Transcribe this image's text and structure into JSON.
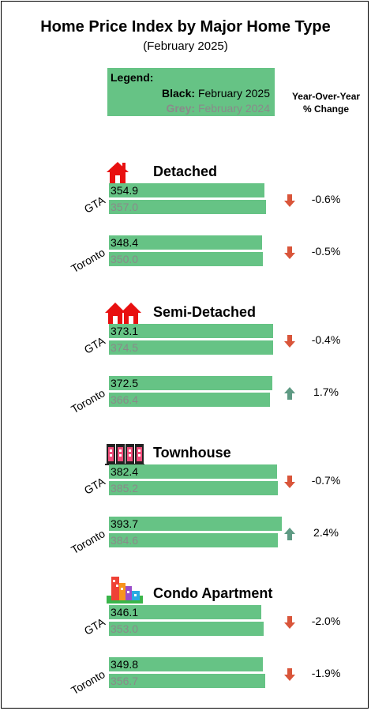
{
  "header": {
    "title": "Home Price Index by Major Home Type",
    "subtitle": "(February 2025)"
  },
  "legend": {
    "title": "Legend:",
    "black_key": "Black:",
    "black_value": "February 2025",
    "grey_key": "Grey:",
    "grey_value": "February 2024"
  },
  "yoy_header": {
    "line1": "Year-Over-Year",
    "line2": "% Change"
  },
  "colors": {
    "bar": "#66c385",
    "down_arrow": "#d9553a",
    "up_arrow": "#5e9a83",
    "grey_text": "#8a8a8a"
  },
  "sections": [
    {
      "title": "Detached",
      "icon": "house-icon",
      "rows": [
        {
          "region": "GTA",
          "current": "354.9",
          "previous": "357.0",
          "change": "-0.6%",
          "direction": "down"
        },
        {
          "region": "Toronto",
          "current": "348.4",
          "previous": "350.0",
          "change": "-0.5%",
          "direction": "down"
        }
      ]
    },
    {
      "title": "Semi-Detached",
      "icon": "semi-detached-icon",
      "rows": [
        {
          "region": "GTA",
          "current": "373.1",
          "previous": "374.5",
          "change": "-0.4%",
          "direction": "down"
        },
        {
          "region": "Toronto",
          "current": "372.5",
          "previous": "366.4",
          "change": "1.7%",
          "direction": "up"
        }
      ]
    },
    {
      "title": "Townhouse",
      "icon": "townhouse-icon",
      "rows": [
        {
          "region": "GTA",
          "current": "382.4",
          "previous": "385.2",
          "change": "-0.7%",
          "direction": "down"
        },
        {
          "region": "Toronto",
          "current": "393.7",
          "previous": "384.6",
          "change": "2.4%",
          "direction": "up"
        }
      ]
    },
    {
      "title": "Condo Apartment",
      "icon": "condo-apartment-icon",
      "rows": [
        {
          "region": "GTA",
          "current": "346.1",
          "previous": "353.0",
          "change": "-2.0%",
          "direction": "down"
        },
        {
          "region": "Toronto",
          "current": "349.8",
          "previous": "356.7",
          "change": "-1.9%",
          "direction": "down"
        }
      ]
    }
  ],
  "chart_data": {
    "type": "bar",
    "title": "Home Price Index by Major Home Type",
    "subtitle": "(February 2025)",
    "xlim": [
      0,
      393.7
    ],
    "categories": [
      "Detached GTA",
      "Detached Toronto",
      "Semi-Detached GTA",
      "Semi-Detached Toronto",
      "Townhouse GTA",
      "Townhouse Toronto",
      "Condo Apartment GTA",
      "Condo Apartment Toronto"
    ],
    "series": [
      {
        "name": "February 2025",
        "values": [
          354.9,
          348.4,
          373.1,
          372.5,
          382.4,
          393.7,
          346.1,
          349.8
        ]
      },
      {
        "name": "February 2024",
        "values": [
          357.0,
          350.0,
          374.5,
          366.4,
          385.2,
          384.6,
          353.0,
          356.7
        ]
      }
    ],
    "yoy_change_percent": [
      -0.6,
      -0.5,
      -0.4,
      1.7,
      -0.7,
      2.4,
      -2.0,
      -1.9
    ]
  }
}
